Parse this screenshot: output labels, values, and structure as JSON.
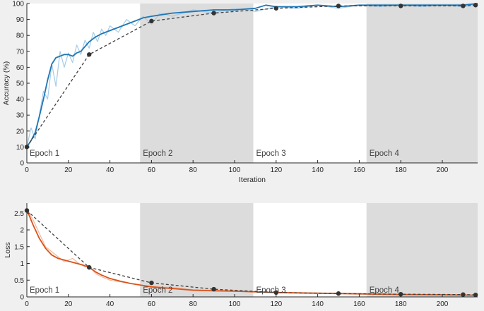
{
  "chart_data": [
    {
      "type": "line",
      "ylabel": "Accuracy (%)",
      "xlabel": "Iteration",
      "xlim": [
        0,
        217
      ],
      "ylim": [
        0,
        100
      ],
      "xticks": [
        0,
        20,
        40,
        60,
        80,
        100,
        120,
        140,
        160,
        180,
        200
      ],
      "yticks": [
        0,
        10,
        20,
        30,
        40,
        50,
        60,
        70,
        80,
        90,
        100
      ],
      "grid": false,
      "epoch_bands": [
        {
          "label": "Epoch 1",
          "range": [
            0,
            54.5
          ],
          "shaded": false
        },
        {
          "label": "Epoch 2",
          "range": [
            54.5,
            109
          ],
          "shaded": true
        },
        {
          "label": "Epoch 3",
          "range": [
            109,
            163.5
          ],
          "shaded": false
        },
        {
          "label": "Epoch 4",
          "range": [
            163.5,
            217
          ],
          "shaded": true
        }
      ],
      "series": [
        {
          "role": "raw",
          "color": "#a6cbe8",
          "x": [
            0,
            2,
            4,
            6,
            8,
            10,
            12,
            14,
            16,
            18,
            20,
            22,
            24,
            26,
            28,
            30,
            32,
            34,
            36,
            38,
            40,
            44,
            48,
            52,
            56,
            60,
            64,
            70,
            80,
            90,
            100,
            110,
            120,
            130,
            140,
            150,
            160,
            170,
            180,
            190,
            200,
            210,
            217
          ],
          "y": [
            10,
            22,
            15,
            30,
            45,
            40,
            62,
            48,
            70,
            60,
            69,
            63,
            74,
            68,
            77,
            72,
            82,
            76,
            84,
            80,
            86,
            82,
            90,
            86,
            92,
            87,
            94,
            92,
            96,
            94,
            97,
            95,
            98,
            97,
            99,
            97,
            99,
            98,
            99,
            98,
            99,
            98,
            99
          ]
        },
        {
          "role": "smoothed",
          "color": "#1f77b4",
          "x": [
            0,
            2,
            4,
            6,
            8,
            10,
            12,
            14,
            16,
            18,
            20,
            22,
            24,
            26,
            28,
            30,
            33,
            36,
            40,
            44,
            48,
            52,
            56,
            60,
            65,
            70,
            80,
            90,
            100,
            110,
            115,
            120,
            130,
            140,
            150,
            160,
            170,
            180,
            190,
            200,
            210,
            217
          ],
          "y": [
            10,
            14,
            19,
            29,
            40,
            52,
            62,
            66,
            67,
            68,
            68,
            67,
            69,
            70,
            73,
            76,
            79,
            81,
            83,
            85,
            87,
            89,
            91,
            92,
            93,
            94,
            95,
            96,
            96,
            97,
            99,
            98,
            98,
            99,
            98,
            99,
            99,
            99,
            99,
            99,
            99,
            100
          ]
        },
        {
          "role": "validation",
          "color": "#404040",
          "style": "dashed",
          "markers": true,
          "x": [
            0,
            30,
            60,
            90,
            120,
            150,
            180,
            210,
            216
          ],
          "y": [
            10,
            68,
            89,
            94,
            97,
            98.5,
            98.5,
            98.5,
            99
          ]
        }
      ]
    },
    {
      "type": "line",
      "ylabel": "Loss",
      "xlabel": "",
      "xlim": [
        0,
        217
      ],
      "ylim": [
        0,
        2.8
      ],
      "xticks": [
        0,
        20,
        40,
        60,
        80,
        100,
        120,
        140,
        160,
        180,
        200
      ],
      "yticks": [
        0,
        0.5,
        1,
        1.5,
        2,
        2.5
      ],
      "ytick_labels": [
        "0",
        "0.5",
        "1",
        "1.5",
        "2",
        "2.5"
      ],
      "grid": false,
      "epoch_bands": [
        {
          "label": "Epoch 1",
          "range": [
            0,
            54.5
          ],
          "shaded": false
        },
        {
          "label": "Epoch 2",
          "range": [
            54.5,
            109
          ],
          "shaded": true
        },
        {
          "label": "Epoch 3",
          "range": [
            109,
            163.5
          ],
          "shaded": false
        },
        {
          "label": "Epoch 4",
          "range": [
            163.5,
            217
          ],
          "shaded": true
        }
      ],
      "series": [
        {
          "role": "raw",
          "color": "#f2b99a",
          "x": [
            0,
            3,
            6,
            9,
            12,
            15,
            18,
            20,
            22,
            25,
            28,
            30,
            33,
            36,
            40,
            45,
            50,
            55,
            60,
            70,
            80,
            90,
            100,
            120,
            140,
            160,
            180,
            200,
            217
          ],
          "y": [
            2.6,
            2.3,
            1.9,
            1.5,
            1.35,
            1.2,
            1.05,
            1.1,
            1.15,
            1.0,
            0.9,
            0.95,
            0.7,
            0.6,
            0.5,
            0.45,
            0.4,
            0.35,
            0.32,
            0.28,
            0.22,
            0.2,
            0.18,
            0.14,
            0.12,
            0.1,
            0.08,
            0.07,
            0.05
          ]
        },
        {
          "role": "smoothed",
          "color": "#d95319",
          "x": [
            0,
            3,
            6,
            9,
            12,
            15,
            18,
            21,
            24,
            27,
            30,
            33,
            36,
            40,
            45,
            50,
            55,
            60,
            70,
            80,
            90,
            100,
            110,
            120,
            140,
            160,
            180,
            200,
            217
          ],
          "y": [
            2.6,
            2.15,
            1.75,
            1.45,
            1.25,
            1.15,
            1.1,
            1.05,
            1.0,
            0.95,
            0.88,
            0.75,
            0.65,
            0.55,
            0.47,
            0.4,
            0.35,
            0.3,
            0.25,
            0.2,
            0.18,
            0.17,
            0.15,
            0.13,
            0.11,
            0.09,
            0.07,
            0.06,
            0.05
          ]
        },
        {
          "role": "validation",
          "color": "#404040",
          "style": "dashed",
          "markers": true,
          "x": [
            0,
            30,
            60,
            90,
            120,
            150,
            180,
            210,
            216
          ],
          "y": [
            2.58,
            0.88,
            0.42,
            0.23,
            0.13,
            0.1,
            0.08,
            0.07,
            0.06
          ]
        }
      ]
    }
  ]
}
